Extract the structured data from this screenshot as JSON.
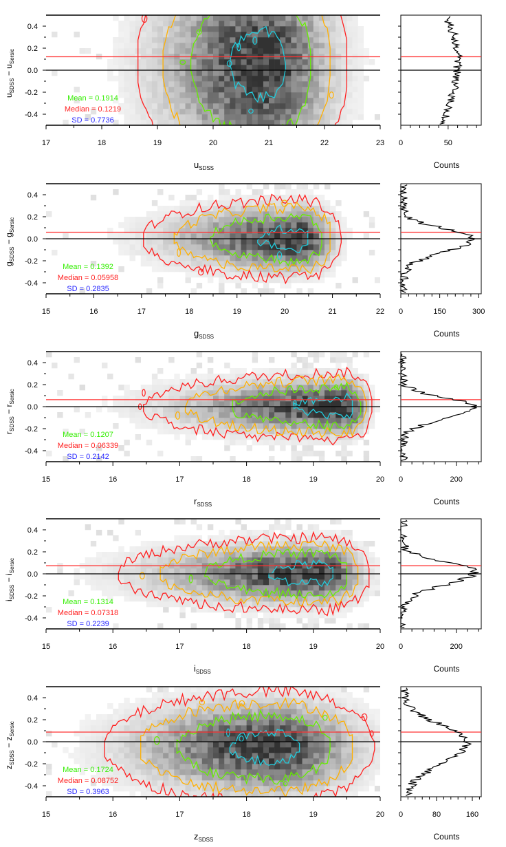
{
  "chart_data": [
    {
      "type": "heatmap",
      "band": "u",
      "xlabel": {
        "main": "u",
        "sub": "SDSS"
      },
      "ylabel": {
        "a": "u",
        "asub": "SDSS",
        "b": "u",
        "bsub": "Sersic"
      },
      "xlim": [
        17,
        23
      ],
      "xticks": [
        "17",
        "18",
        "19",
        "20",
        "21",
        "22",
        "23"
      ],
      "ylim": [
        -0.5,
        0.5
      ],
      "yticks": [
        "0.4",
        "0.2",
        "0.0",
        "-0.2",
        "-0.4"
      ],
      "stats": {
        "mean": "Mean = 0.1914",
        "median": "Median = 0.1219",
        "sd": "SD = 0.7736"
      },
      "median_value": 0.1219,
      "density_model": {
        "x_peak": 20.9,
        "x_sigma_left": 0.9,
        "x_sigma_right": 0.6,
        "y_center": 0.05,
        "y_sigma": 0.45
      },
      "hist": {
        "xlabel": "Counts",
        "xlim": [
          0,
          85
        ],
        "xticks": [
          "0",
          "50"
        ],
        "peak": 60,
        "center": 0.1,
        "sigma": 0.5,
        "floor": 15
      }
    },
    {
      "type": "heatmap",
      "band": "g",
      "xlabel": {
        "main": "g",
        "sub": "SDSS"
      },
      "ylabel": {
        "a": "g",
        "asub": "SDSS",
        "b": "g",
        "bsub": "Sersic"
      },
      "xlim": [
        15,
        22
      ],
      "xticks": [
        "15",
        "16",
        "17",
        "18",
        "19",
        "20",
        "21",
        "22"
      ],
      "ylim": [
        -0.5,
        0.5
      ],
      "yticks": [
        "0.4",
        "0.2",
        "0.0",
        "-0.2",
        "-0.4"
      ],
      "stats": {
        "mean": "Mean = 0.1392",
        "median": "Median = 0.05958",
        "sd": "SD = 0.2835"
      },
      "median_value": 0.05958,
      "density_model": {
        "x_peak": 20.3,
        "x_sigma_left": 1.3,
        "x_sigma_right": 0.35,
        "y_center": 0.0,
        "y_sigma": 0.14
      },
      "hist": {
        "xlabel": "Counts",
        "xlim": [
          0,
          310
        ],
        "xticks": [
          "0",
          "150",
          "300"
        ],
        "peak": 280,
        "center": 0.0,
        "sigma": 0.09,
        "floor": 5
      }
    },
    {
      "type": "heatmap",
      "band": "r",
      "xlabel": {
        "main": "r",
        "sub": "SDSS"
      },
      "ylabel": {
        "a": "r",
        "asub": "SDSS",
        "b": "r",
        "bsub": "Sersic"
      },
      "xlim": [
        15,
        20
      ],
      "xticks": [
        "15",
        "16",
        "17",
        "18",
        "19",
        "20"
      ],
      "ylim": [
        -0.5,
        0.5
      ],
      "yticks": [
        "0.4",
        "0.2",
        "0.0",
        "-0.2",
        "-0.4"
      ],
      "stats": {
        "mean": "Mean = 0.1207",
        "median": "Median = 0.06339",
        "sd": "SD = 0.2142"
      },
      "median_value": 0.06339,
      "density_model": {
        "x_peak": 19.5,
        "x_sigma_left": 1.2,
        "x_sigma_right": 0.15,
        "y_center": 0.0,
        "y_sigma": 0.12
      },
      "hist": {
        "xlabel": "Counts",
        "xlim": [
          0,
          290
        ],
        "xticks": [
          "0",
          "200"
        ],
        "peak": 270,
        "center": 0.0,
        "sigma": 0.08,
        "floor": 3
      }
    },
    {
      "type": "heatmap",
      "band": "i",
      "xlabel": {
        "main": "i",
        "sub": "SDSS"
      },
      "ylabel": {
        "a": "i",
        "asub": "SDSS",
        "b": "i",
        "bsub": "Sersic"
      },
      "xlim": [
        15,
        20
      ],
      "xticks": [
        "15",
        "16",
        "17",
        "18",
        "19",
        "20"
      ],
      "ylim": [
        -0.5,
        0.5
      ],
      "yticks": [
        "0.4",
        "0.2",
        "0.0",
        "-0.2",
        "-0.4"
      ],
      "stats": {
        "mean": "Mean = 0.1314",
        "median": "Median = 0.07318",
        "sd": "SD = 0.2239"
      },
      "median_value": 0.07318,
      "density_model": {
        "x_peak": 19.1,
        "x_sigma_left": 1.2,
        "x_sigma_right": 0.3,
        "y_center": 0.0,
        "y_sigma": 0.13
      },
      "hist": {
        "xlabel": "Counts",
        "xlim": [
          0,
          290
        ],
        "xticks": [
          "0",
          "200"
        ],
        "peak": 265,
        "center": 0.02,
        "sigma": 0.09,
        "floor": 3
      }
    },
    {
      "type": "heatmap",
      "band": "z",
      "xlabel": {
        "main": "z",
        "sub": "SDSS"
      },
      "ylabel": {
        "a": "z",
        "asub": "SDSS",
        "b": "z",
        "bsub": "Sersic"
      },
      "xlim": [
        15,
        20
      ],
      "xticks": [
        "15",
        "16",
        "17",
        "18",
        "19",
        "20"
      ],
      "ylim": [
        -0.5,
        0.5
      ],
      "yticks": [
        "0.4",
        "0.2",
        "0.0",
        "-0.2",
        "-0.4"
      ],
      "stats": {
        "mean": "Mean = 0.1724",
        "median": "Median = 0.08752",
        "sd": "SD = 0.3963"
      },
      "median_value": 0.08752,
      "density_model": {
        "x_peak": 18.4,
        "x_sigma_left": 1.0,
        "x_sigma_right": 0.6,
        "y_center": -0.05,
        "y_sigma": 0.2
      },
      "hist": {
        "xlabel": "Counts",
        "xlim": [
          0,
          180
        ],
        "xticks": [
          "0",
          "80",
          "160"
        ],
        "peak": 150,
        "center": 0.0,
        "sigma": 0.15,
        "floor": 5
      }
    }
  ],
  "colors": {
    "contours": [
      "#ff2020",
      "#ffb000",
      "#66ee00",
      "#22ccdd"
    ],
    "median_line": "#ff3030",
    "zero_line": "#000000",
    "mean_text": "#33ee00",
    "median_text": "#ff2020",
    "sd_text": "#2a2aff"
  },
  "contour_levels": [
    0.04,
    0.13,
    0.35,
    0.8
  ]
}
